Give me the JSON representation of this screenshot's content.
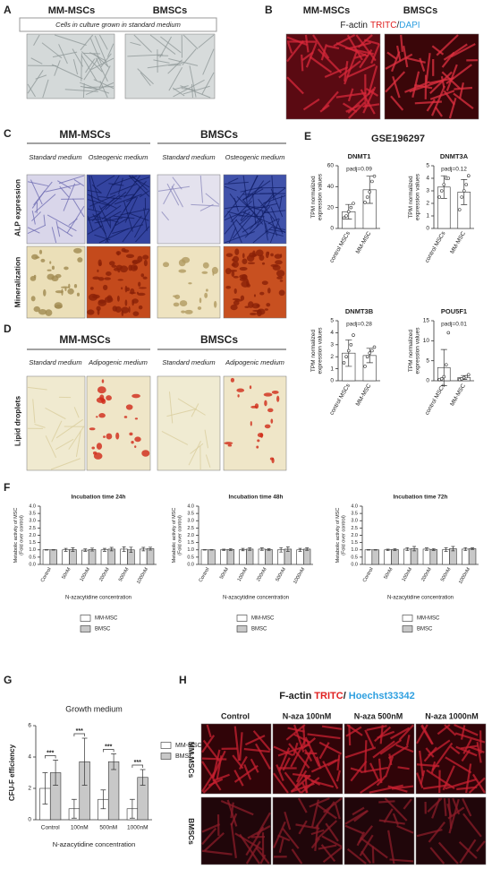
{
  "panels": {
    "A": {
      "label": "A",
      "headers": [
        "MM-MSCs",
        "BMSCs"
      ],
      "caption": "Cells in culture grown in standard medium"
    },
    "B": {
      "label": "B",
      "headers": [
        "MM-MSCs",
        "BMSCs"
      ],
      "title": [
        "F-actin",
        "TRITC",
        "/",
        "DAPI"
      ]
    },
    "C": {
      "label": "C",
      "headers": [
        "MM-MSCs",
        "BMSCs"
      ],
      "media": [
        "Standard medium",
        "Osteogenic medium",
        "Standard medium",
        "Osteogenic medium"
      ],
      "rows": [
        "ALP expression",
        "Mineralization"
      ]
    },
    "D": {
      "label": "D",
      "headers": [
        "MM-MSCs",
        "BMSCs"
      ],
      "media": [
        "Standard medium",
        "Adipogenic medium",
        "Standard medium",
        "Adipogenic medium"
      ],
      "rows": [
        "Lipid droplets"
      ]
    },
    "E": {
      "label": "E",
      "title": "GSE196297"
    },
    "F": {
      "label": "F"
    },
    "G": {
      "label": "G"
    },
    "H": {
      "label": "H",
      "title": [
        "F-actin",
        "TRITC",
        "/",
        "Hoechst33342"
      ],
      "columns": [
        "Control",
        "N-aza 100nM",
        "N-aza 500nM",
        "N-aza 1000nM"
      ],
      "rows": [
        "MM-MSCs",
        "BMSCs"
      ]
    }
  },
  "chart_data": [
    {
      "type": "bar",
      "title": "DNMT1",
      "annotation": "padj=0.09",
      "ylabel": [
        "TPM normalized",
        "expression values"
      ],
      "categories": [
        "control MSCs",
        "MM-MSC"
      ],
      "ylim": [
        0,
        60
      ],
      "yticks": [
        0,
        20,
        40,
        60
      ],
      "series": [
        {
          "color": "#ffffff",
          "values": [
            16,
            37
          ],
          "errors": [
            7,
            13
          ],
          "points": [
            [
              10,
              12,
              16,
              20,
              24
            ],
            [
              25,
              30,
              35,
              45,
              50
            ]
          ]
        }
      ]
    },
    {
      "type": "bar",
      "title": "DNMT3A",
      "annotation": "padj=0.12",
      "ylabel": [
        "TPM normalized",
        "expression values"
      ],
      "categories": [
        "control MSCs",
        "MM-MSC"
      ],
      "ylim": [
        0,
        5
      ],
      "yticks": [
        0,
        1,
        2,
        3,
        4,
        5
      ],
      "series": [
        {
          "color": "#ffffff",
          "values": [
            3.3,
            2.9
          ],
          "errors": [
            0.9,
            1.0
          ],
          "points": [
            [
              2.5,
              3,
              3.5,
              4,
              4
            ],
            [
              1.5,
              2.5,
              3,
              3.5,
              4.2
            ]
          ]
        }
      ]
    },
    {
      "type": "bar",
      "title": "DNMT3B",
      "annotation": "padj=0.28",
      "ylabel": [
        "TPM normalized",
        "expression values"
      ],
      "categories": [
        "control MSCs",
        "MM-MSC"
      ],
      "ylim": [
        0,
        5
      ],
      "yticks": [
        0,
        1,
        2,
        3,
        4,
        5
      ],
      "series": [
        {
          "color": "#ffffff",
          "values": [
            2.3,
            2.1
          ],
          "errors": [
            1.1,
            0.6
          ],
          "points": [
            [
              1.5,
              2,
              2.5,
              3,
              3.8
            ],
            [
              1.2,
              2,
              2.3,
              2.5,
              2.8
            ]
          ]
        }
      ]
    },
    {
      "type": "bar",
      "title": "POU5F1",
      "annotation": "padj=0.01",
      "ylabel": [
        "TPM normalized",
        "expression values"
      ],
      "categories": [
        "control MSCs",
        "MM-MSC"
      ],
      "ylim": [
        0,
        15
      ],
      "yticks": [
        0,
        5,
        10,
        15
      ],
      "series": [
        {
          "color": "#ffffff",
          "values": [
            3.3,
            0.8
          ],
          "errors": [
            4.5,
            0.5
          ],
          "points": [
            [
              0.3,
              0.5,
              1,
              4,
              12
            ],
            [
              0.3,
              0.5,
              0.8,
              1,
              1.5
            ]
          ]
        }
      ]
    },
    {
      "type": "bar",
      "title": "Incubation time 24h",
      "ylabel": [
        "Metabolic activity of MSC",
        "(Fold over control)"
      ],
      "xlabel": "N-azacytidine concentration",
      "categories": [
        "Control",
        "50nM",
        "100nM",
        "200nM",
        "500nM",
        "1000nM"
      ],
      "ylim": [
        0,
        4
      ],
      "yticks": [
        {
          "value": 0,
          "label": "0.0"
        },
        {
          "value": 0.5,
          "label": "0.5"
        },
        {
          "value": 1,
          "label": "1.0"
        },
        {
          "value": 1.5,
          "label": "1.5"
        },
        {
          "value": 2,
          "label": "2.0"
        },
        {
          "value": 2.5,
          "label": "2.5"
        },
        {
          "value": 3,
          "label": "3.0"
        },
        {
          "value": 3.5,
          "label": "3.5"
        },
        {
          "value": 4,
          "label": "4.0"
        }
      ],
      "series": [
        {
          "name": "MM-MSC",
          "color": "#ffffff",
          "values": [
            1.0,
            1.0,
            0.98,
            1.0,
            1.05,
            1.05
          ],
          "errors": [
            0.02,
            0.1,
            0.08,
            0.1,
            0.15,
            0.12
          ]
        },
        {
          "name": "BMSC",
          "color": "#c8c8c8",
          "values": [
            1.0,
            1.02,
            1.02,
            1.05,
            1.0,
            1.08
          ],
          "errors": [
            0.02,
            0.12,
            0.1,
            0.12,
            0.18,
            0.1
          ]
        }
      ]
    },
    {
      "type": "bar",
      "title": "Incubation time 48h",
      "ylabel": [
        "Metabolic activity of MSC",
        "(Fold over control)"
      ],
      "xlabel": "N-azacytidine concentration",
      "categories": [
        "Control",
        "50nM",
        "100nM",
        "200nM",
        "500nM",
        "1000nM"
      ],
      "ylim": [
        0,
        4
      ],
      "yticks": [
        {
          "value": 0,
          "label": "0.0"
        },
        {
          "value": 0.5,
          "label": "0.5"
        },
        {
          "value": 1,
          "label": "1.0"
        },
        {
          "value": 1.5,
          "label": "1.5"
        },
        {
          "value": 2,
          "label": "2.0"
        },
        {
          "value": 2.5,
          "label": "2.5"
        },
        {
          "value": 3,
          "label": "3.0"
        },
        {
          "value": 3.5,
          "label": "3.5"
        },
        {
          "value": 4,
          "label": "4.0"
        }
      ],
      "series": [
        {
          "name": "MM-MSC",
          "color": "#ffffff",
          "values": [
            1.0,
            1.0,
            1.02,
            1.05,
            1.0,
            1.0
          ],
          "errors": [
            0.02,
            0.05,
            0.08,
            0.08,
            0.15,
            0.1
          ]
        },
        {
          "name": "BMSC",
          "color": "#c8c8c8",
          "values": [
            1.0,
            1.02,
            1.05,
            1.02,
            1.05,
            1.05
          ],
          "errors": [
            0.02,
            0.06,
            0.08,
            0.05,
            0.15,
            0.08
          ]
        }
      ]
    },
    {
      "type": "bar",
      "title": "Incubation time 72h",
      "ylabel": [
        "Metabolic activity of MSC",
        "(Fold over control)"
      ],
      "xlabel": "N-azacytidine concentration",
      "categories": [
        "Control",
        "50nM",
        "100nM",
        "200nM",
        "500nM",
        "1000nM"
      ],
      "ylim": [
        0,
        4
      ],
      "yticks": [
        {
          "value": 0,
          "label": "0.0"
        },
        {
          "value": 0.5,
          "label": "0.5"
        },
        {
          "value": 1,
          "label": "1.0"
        },
        {
          "value": 1.5,
          "label": "1.5"
        },
        {
          "value": 2,
          "label": "2.0"
        },
        {
          "value": 2.5,
          "label": "2.5"
        },
        {
          "value": 3,
          "label": "3.0"
        },
        {
          "value": 3.5,
          "label": "3.5"
        },
        {
          "value": 4,
          "label": "4.0"
        }
      ],
      "series": [
        {
          "name": "MM-MSC",
          "color": "#ffffff",
          "values": [
            1.0,
            1.0,
            1.05,
            1.05,
            1.02,
            1.05
          ],
          "errors": [
            0.02,
            0.05,
            0.1,
            0.08,
            0.12,
            0.1
          ]
        },
        {
          "name": "BMSC",
          "color": "#c8c8c8",
          "values": [
            1.0,
            1.02,
            1.08,
            1.02,
            1.08,
            1.08
          ],
          "errors": [
            0.02,
            0.06,
            0.15,
            0.06,
            0.15,
            0.06
          ]
        }
      ]
    },
    {
      "type": "bar",
      "title": "Growth medium",
      "ylabel": [
        "CFU-F efficiency"
      ],
      "xlabel": "N-azacytidine concentration",
      "categories": [
        "Control",
        "100nM",
        "500nM",
        "1000nM"
      ],
      "ylim": [
        0,
        6
      ],
      "yticks": [
        0,
        2,
        4,
        6
      ],
      "annotations": [
        "***",
        "***",
        "***",
        "***"
      ],
      "series": [
        {
          "name": "MM-MSC",
          "color": "#ffffff",
          "values": [
            2.0,
            0.7,
            1.3,
            0.7
          ],
          "errors": [
            1.0,
            0.6,
            0.6,
            0.6
          ]
        },
        {
          "name": "BMSC",
          "color": "#c8c8c8",
          "values": [
            3.0,
            3.7,
            3.7,
            2.7
          ],
          "errors": [
            0.8,
            1.5,
            0.5,
            0.5
          ]
        }
      ]
    }
  ]
}
